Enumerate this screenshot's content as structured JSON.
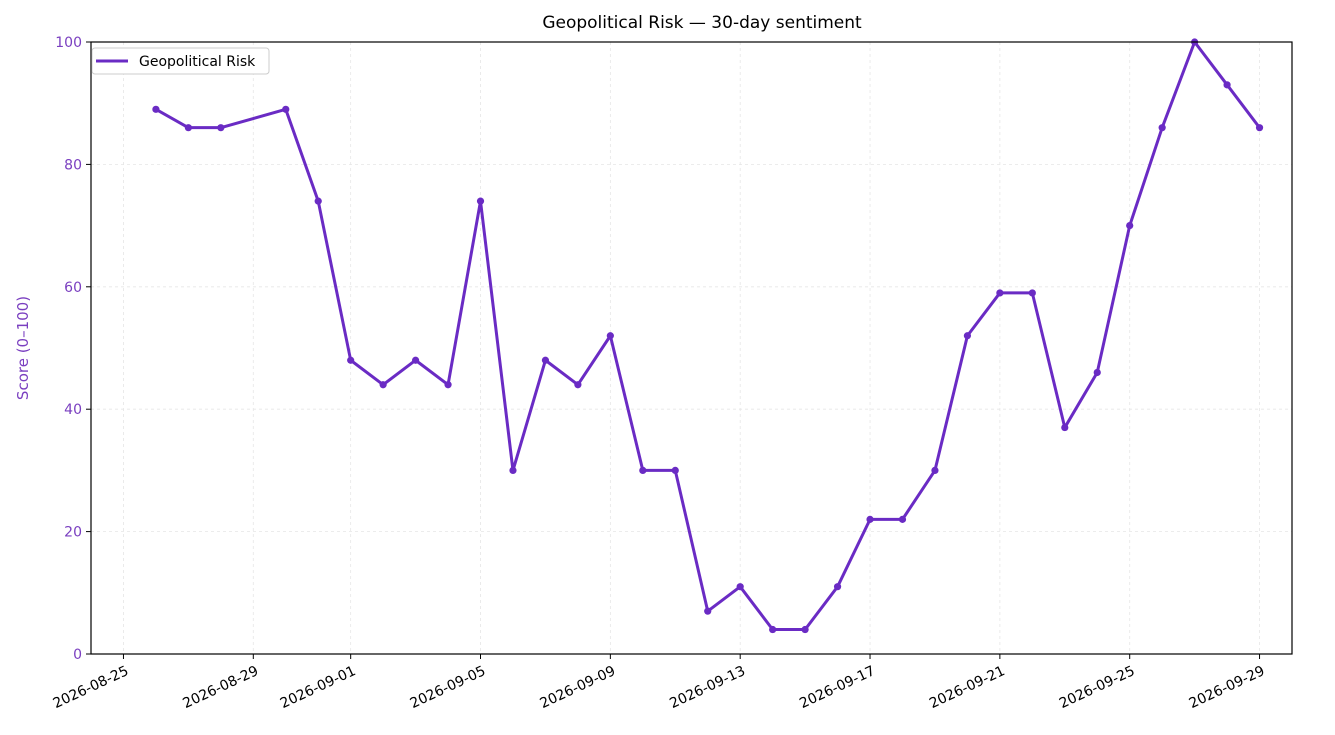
{
  "chart_data": {
    "type": "line",
    "title": "Geopolitical Risk — 30-day sentiment",
    "xlabel": "",
    "ylabel": "Score (0–100)",
    "ylim": [
      0,
      100
    ],
    "xlim": [
      "2026-08-24",
      "2026-09-30"
    ],
    "yticks": [
      0,
      20,
      40,
      60,
      80,
      100
    ],
    "xticks": [
      "2026-08-25",
      "2026-08-29",
      "2026-09-01",
      "2026-09-05",
      "2026-09-09",
      "2026-09-13",
      "2026-09-17",
      "2026-09-21",
      "2026-09-25",
      "2026-09-29"
    ],
    "grid": true,
    "legend_position": "top-left",
    "series": [
      {
        "name": "Geopolitical Risk",
        "color": "#6a2bc4",
        "points": [
          {
            "x": "2026-08-26",
            "y": 89
          },
          {
            "x": "2026-08-27",
            "y": 86
          },
          {
            "x": "2026-08-28",
            "y": 86
          },
          {
            "x": "2026-08-30",
            "y": 89
          },
          {
            "x": "2026-08-31",
            "y": 74
          },
          {
            "x": "2026-09-01",
            "y": 48
          },
          {
            "x": "2026-09-02",
            "y": 44
          },
          {
            "x": "2026-09-03",
            "y": 48
          },
          {
            "x": "2026-09-04",
            "y": 44
          },
          {
            "x": "2026-09-05",
            "y": 74
          },
          {
            "x": "2026-09-06",
            "y": 30
          },
          {
            "x": "2026-09-07",
            "y": 48
          },
          {
            "x": "2026-09-08",
            "y": 44
          },
          {
            "x": "2026-09-09",
            "y": 52
          },
          {
            "x": "2026-09-10",
            "y": 30
          },
          {
            "x": "2026-09-11",
            "y": 30
          },
          {
            "x": "2026-09-12",
            "y": 7
          },
          {
            "x": "2026-09-13",
            "y": 11
          },
          {
            "x": "2026-09-14",
            "y": 4
          },
          {
            "x": "2026-09-15",
            "y": 4
          },
          {
            "x": "2026-09-16",
            "y": 11
          },
          {
            "x": "2026-09-17",
            "y": 22
          },
          {
            "x": "2026-09-18",
            "y": 22
          },
          {
            "x": "2026-09-19",
            "y": 30
          },
          {
            "x": "2026-09-20",
            "y": 52
          },
          {
            "x": "2026-09-21",
            "y": 59
          },
          {
            "x": "2026-09-22",
            "y": 59
          },
          {
            "x": "2026-09-23",
            "y": 37
          },
          {
            "x": "2026-09-24",
            "y": 46
          },
          {
            "x": "2026-09-25",
            "y": 70
          },
          {
            "x": "2026-09-26",
            "y": 86
          },
          {
            "x": "2026-09-27",
            "y": 100
          },
          {
            "x": "2026-09-28",
            "y": 93
          },
          {
            "x": "2026-09-29",
            "y": 86
          }
        ]
      }
    ],
    "colors": {
      "line": "#6a2bc4",
      "y_axis_text": "#7a3fc0",
      "grid": "#e6e6e6",
      "frame": "#000000"
    }
  }
}
